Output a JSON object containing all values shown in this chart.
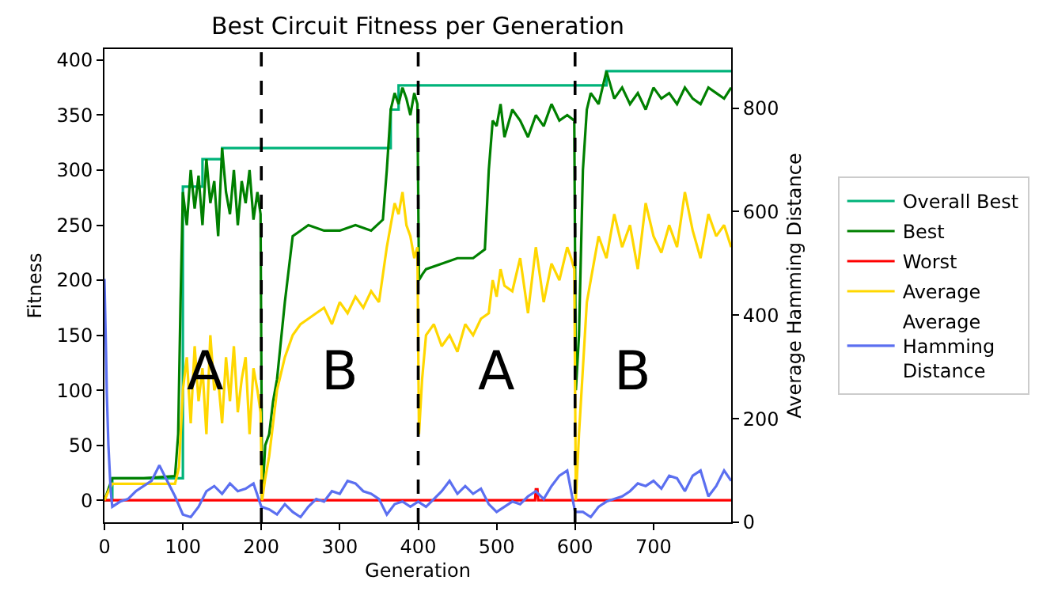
{
  "chart_data": {
    "type": "line",
    "title": "Best Circuit Fitness per Generation",
    "xlabel": "Generation",
    "ylabel": "Fitness",
    "y2label": "Average Hamming Distance",
    "xlim": [
      0,
      799
    ],
    "xticks": [
      0,
      100,
      200,
      300,
      400,
      500,
      600,
      700
    ],
    "ylim": [
      -20,
      410
    ],
    "yticks": [
      0,
      50,
      100,
      150,
      200,
      250,
      300,
      350,
      400
    ],
    "y2lim": [
      0,
      914
    ],
    "y2ticks": [
      0,
      200,
      400,
      600,
      800
    ],
    "legend": "right",
    "marker": "none",
    "ref_lines": [
      {
        "axis": "x",
        "value": 200,
        "color": "#000000",
        "line_style": "dashed"
      },
      {
        "axis": "x",
        "value": 400,
        "color": "#000000",
        "line_style": "dashed"
      },
      {
        "axis": "x",
        "value": 600,
        "color": "#000000",
        "line_style": "dashed"
      }
    ],
    "annotations": [
      "A",
      "B",
      "A",
      "B"
    ],
    "series": [
      {
        "name": "Overall Best",
        "type": "step",
        "color": "#00b37a",
        "x": [
          0,
          10,
          99,
          100,
          125,
          150,
          365,
          375,
          640,
          799
        ],
        "values": [
          0,
          20,
          20,
          285,
          310,
          320,
          355,
          377,
          390,
          390
        ]
      },
      {
        "name": "Best",
        "color": "#008000",
        "x": [
          0,
          5,
          10,
          50,
          90,
          94,
          97,
          100,
          105,
          110,
          115,
          120,
          125,
          130,
          135,
          140,
          145,
          150,
          155,
          160,
          165,
          170,
          175,
          180,
          185,
          190,
          195,
          199,
          201,
          205,
          210,
          215,
          220,
          230,
          240,
          250,
          260,
          280,
          300,
          320,
          340,
          355,
          360,
          365,
          370,
          375,
          380,
          385,
          390,
          395,
          399,
          401,
          405,
          410,
          430,
          450,
          470,
          485,
          490,
          495,
          500,
          505,
          510,
          520,
          530,
          540,
          550,
          560,
          570,
          580,
          590,
          599,
          601,
          605,
          610,
          615,
          620,
          630,
          640,
          650,
          660,
          670,
          680,
          690,
          700,
          710,
          720,
          730,
          740,
          750,
          760,
          770,
          780,
          790,
          799
        ],
        "values": [
          0,
          10,
          20,
          20,
          22,
          60,
          180,
          280,
          250,
          300,
          265,
          295,
          250,
          310,
          270,
          290,
          240,
          320,
          280,
          260,
          300,
          250,
          290,
          270,
          300,
          255,
          280,
          260,
          0,
          50,
          60,
          90,
          110,
          180,
          240,
          245,
          250,
          245,
          245,
          250,
          245,
          255,
          300,
          355,
          370,
          360,
          375,
          365,
          350,
          370,
          360,
          200,
          205,
          210,
          215,
          220,
          220,
          228,
          300,
          345,
          340,
          360,
          330,
          355,
          345,
          330,
          350,
          340,
          360,
          345,
          350,
          345,
          100,
          150,
          300,
          355,
          370,
          360,
          390,
          365,
          375,
          360,
          370,
          355,
          375,
          365,
          370,
          360,
          375,
          365,
          360,
          375,
          370,
          365,
          375
        ]
      },
      {
        "name": "Worst",
        "color": "#ff0000",
        "x": [
          0,
          549,
          550,
          552,
          553,
          799
        ],
        "values": [
          0,
          0,
          10,
          10,
          0,
          0
        ]
      },
      {
        "name": "Average",
        "color": "#ffd700",
        "x": [
          0,
          5,
          10,
          50,
          90,
          95,
          100,
          105,
          110,
          115,
          120,
          125,
          130,
          135,
          140,
          145,
          150,
          155,
          160,
          165,
          170,
          175,
          180,
          185,
          190,
          195,
          199,
          201,
          205,
          210,
          220,
          230,
          240,
          250,
          260,
          270,
          280,
          290,
          300,
          310,
          320,
          330,
          340,
          350,
          360,
          370,
          375,
          380,
          385,
          390,
          395,
          399,
          401,
          405,
          410,
          420,
          430,
          440,
          450,
          460,
          470,
          480,
          490,
          495,
          500,
          505,
          510,
          520,
          530,
          540,
          550,
          560,
          570,
          580,
          590,
          595,
          599,
          601,
          605,
          610,
          615,
          620,
          630,
          640,
          650,
          660,
          670,
          680,
          690,
          700,
          710,
          720,
          730,
          740,
          750,
          760,
          770,
          780,
          790,
          799
        ],
        "values": [
          0,
          8,
          15,
          15,
          15,
          30,
          100,
          130,
          70,
          140,
          90,
          120,
          60,
          150,
          100,
          110,
          70,
          130,
          90,
          140,
          80,
          110,
          130,
          60,
          120,
          100,
          80,
          0,
          20,
          40,
          100,
          130,
          150,
          160,
          165,
          170,
          175,
          160,
          180,
          170,
          185,
          175,
          190,
          180,
          230,
          270,
          260,
          280,
          250,
          240,
          220,
          230,
          60,
          110,
          150,
          160,
          140,
          150,
          135,
          160,
          150,
          165,
          170,
          200,
          185,
          210,
          195,
          190,
          220,
          170,
          230,
          180,
          215,
          200,
          230,
          220,
          210,
          0,
          60,
          120,
          180,
          200,
          240,
          220,
          260,
          230,
          250,
          210,
          270,
          240,
          225,
          250,
          230,
          280,
          245,
          220,
          260,
          240,
          250,
          230
        ]
      },
      {
        "name": "Average Hamming Distance",
        "axis": "y2",
        "color": "#5b6ff0",
        "x": [
          0,
          2,
          3,
          5,
          8,
          10,
          20,
          30,
          40,
          50,
          60,
          70,
          80,
          90,
          100,
          110,
          120,
          130,
          140,
          150,
          160,
          170,
          180,
          190,
          200,
          210,
          220,
          230,
          240,
          250,
          260,
          270,
          280,
          290,
          300,
          310,
          320,
          330,
          340,
          350,
          360,
          370,
          380,
          390,
          400,
          410,
          420,
          430,
          440,
          450,
          460,
          470,
          480,
          490,
          500,
          510,
          520,
          530,
          540,
          550,
          560,
          570,
          580,
          590,
          600,
          610,
          620,
          630,
          640,
          650,
          660,
          670,
          680,
          690,
          700,
          710,
          720,
          730,
          740,
          750,
          760,
          770,
          780,
          790,
          799
        ],
        "values": [
          470,
          330,
          250,
          150,
          60,
          30,
          40,
          45,
          60,
          70,
          80,
          110,
          80,
          50,
          15,
          10,
          30,
          60,
          70,
          55,
          75,
          60,
          65,
          75,
          30,
          25,
          15,
          35,
          20,
          10,
          30,
          45,
          40,
          60,
          55,
          80,
          75,
          60,
          55,
          45,
          15,
          35,
          40,
          30,
          40,
          30,
          45,
          60,
          80,
          55,
          70,
          55,
          65,
          35,
          20,
          30,
          40,
          35,
          50,
          60,
          45,
          70,
          90,
          100,
          20,
          20,
          10,
          30,
          40,
          45,
          50,
          60,
          75,
          70,
          80,
          65,
          90,
          85,
          60,
          90,
          100,
          50,
          70,
          100,
          80
        ]
      }
    ]
  }
}
